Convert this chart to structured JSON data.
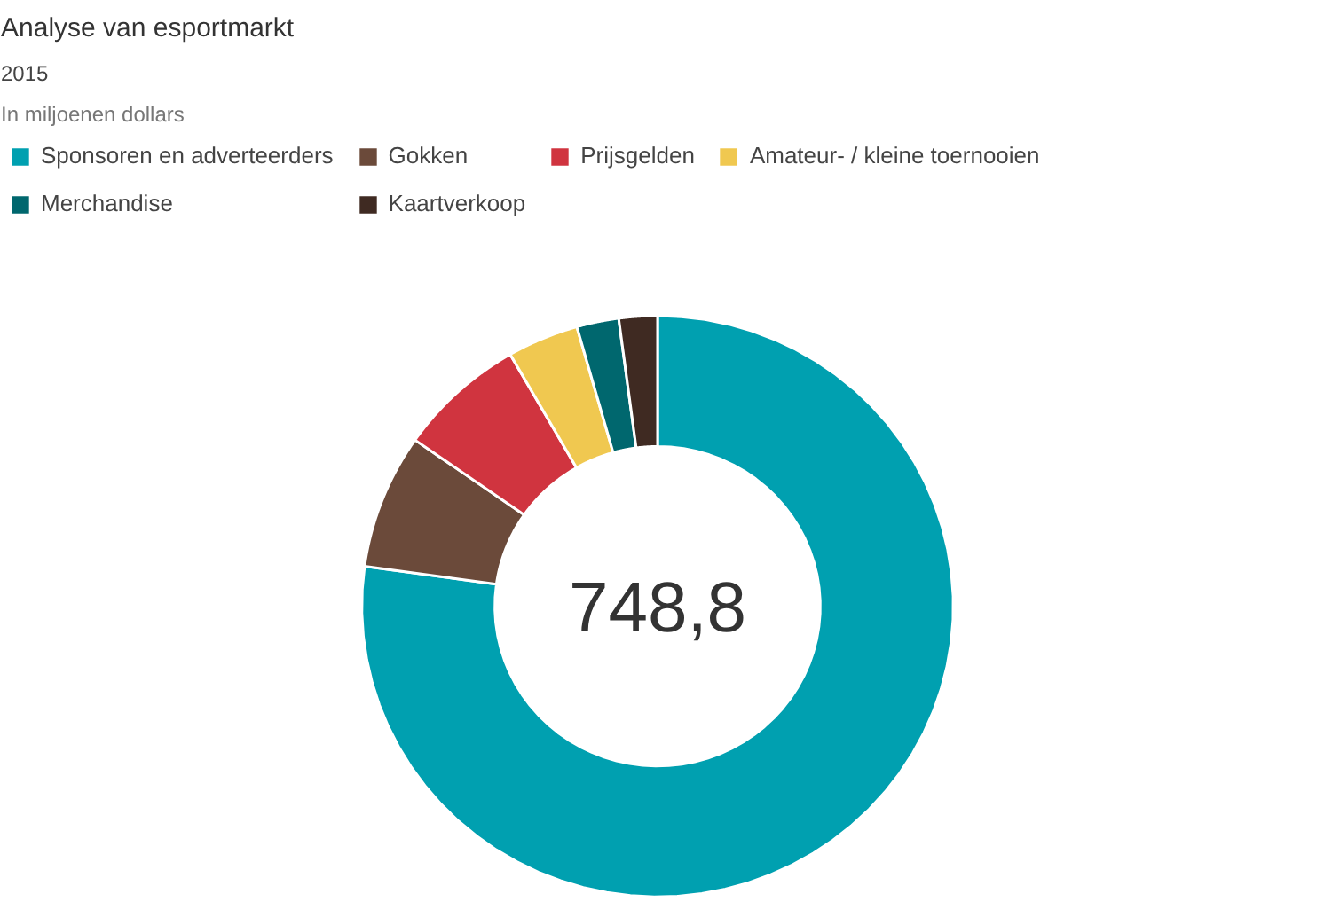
{
  "chart_data": {
    "type": "donut",
    "title": "Analyse van esportmarkt",
    "subtitle": "2015",
    "categories": [
      "Sponsoren en adverteerders",
      "Gokken",
      "Prijsgelden",
      "Amateur- / kleine toernooien",
      "Merchandise",
      "Kaartverkoop"
    ],
    "values": [
      77.2,
      7.5,
      7.0,
      3.9,
      2.3,
      2.1
    ],
    "colors": [
      "#00a0b0",
      "#6b4a3a",
      "#d0343f",
      "#f0c850",
      "#00676e",
      "#3f2a22"
    ],
    "annotations": [
      "In miljoenen dollars",
      "748,8"
    ],
    "legend": "top"
  }
}
